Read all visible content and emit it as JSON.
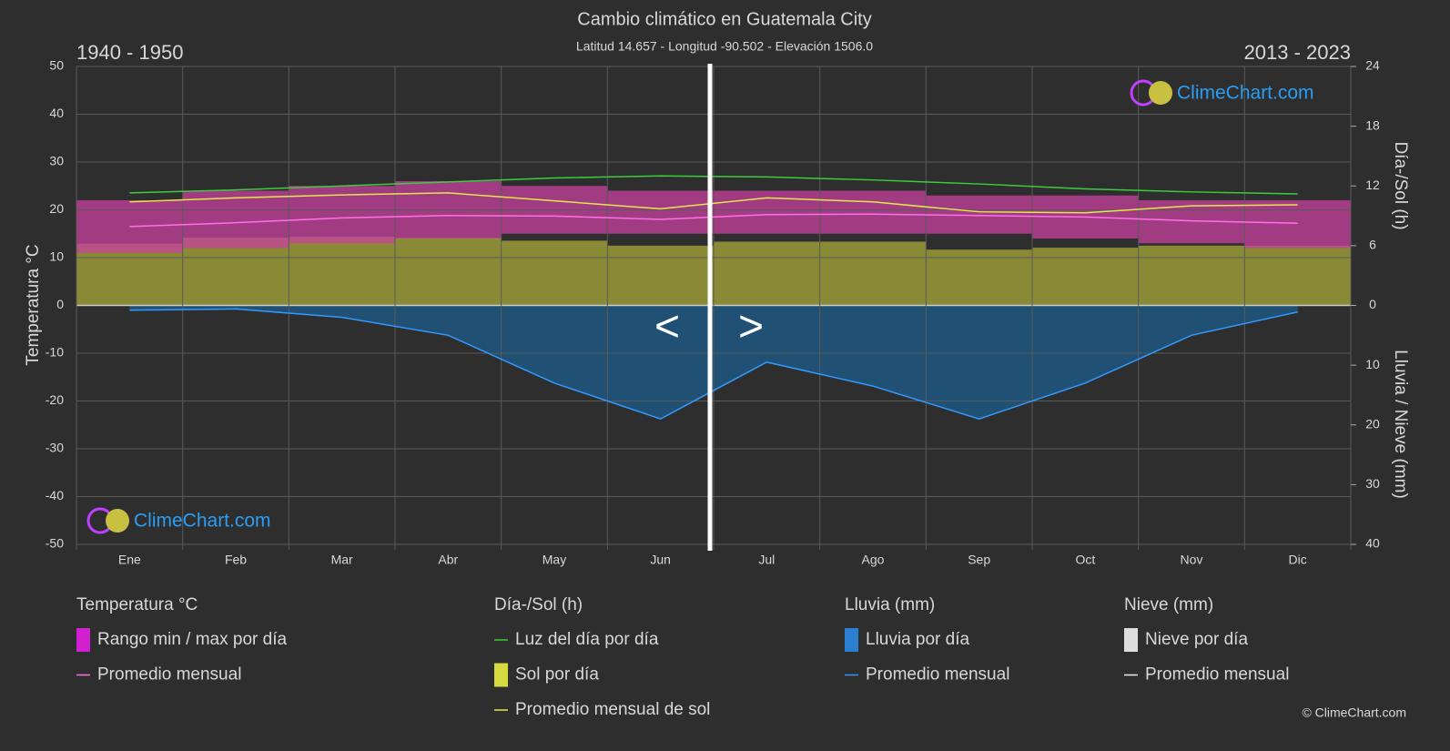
{
  "chart_data": {
    "type": "climate",
    "title": "Cambio climático en Guatemala City",
    "subtitle": "Latitud 14.657 - Longitud -90.502 - Elevación 1506.0",
    "period_left": "1940 - 1950",
    "period_right": "2013 - 2023",
    "y_label": "Temperatura °C",
    "y2_label": "Día-/Sol (h)",
    "y3_label": "Lluvia / Nieve (mm)",
    "watermark": "ClimeChart.com",
    "copyright": "© ClimeChart.com",
    "nav": {
      "prev": "<",
      "next": ">"
    },
    "categories": [
      "Ene",
      "Feb",
      "Mar",
      "Abr",
      "May",
      "Jun",
      "Jul",
      "Ago",
      "Sep",
      "Oct",
      "Nov",
      "Dic"
    ],
    "ylim": [
      -50,
      50
    ],
    "yticks": [
      -50,
      -40,
      -30,
      -20,
      -10,
      0,
      10,
      20,
      30,
      40,
      50
    ],
    "y2lim": [
      0,
      24
    ],
    "y2ticks": [
      0,
      6,
      12,
      18,
      24
    ],
    "y3lim": [
      0,
      40
    ],
    "y3ticks": [
      0,
      10,
      20,
      30,
      40
    ],
    "grid": true,
    "temp_range": {
      "color": "#c8409f",
      "min": [
        11,
        12,
        13,
        14,
        15,
        15,
        15,
        15,
        15,
        14,
        13,
        12
      ],
      "max": [
        22,
        24,
        25,
        26,
        25,
        24,
        24,
        24,
        23,
        23,
        22,
        22
      ]
    },
    "temp_avg": {
      "color": "#ff6ee6",
      "values": [
        16.5,
        17.3,
        18.3,
        18.8,
        18.7,
        18.0,
        19.0,
        19.1,
        18.8,
        18.5,
        17.7,
        17.2
      ]
    },
    "daylight": {
      "axis": "y2",
      "color": "#3ccc3c",
      "values": [
        11.3,
        11.6,
        12.0,
        12.4,
        12.8,
        13.0,
        12.9,
        12.6,
        12.2,
        11.7,
        11.4,
        11.2
      ]
    },
    "sun": {
      "axis": "y2",
      "color": "#8a8a36",
      "values": [
        6.2,
        6.8,
        6.9,
        6.8,
        6.5,
        6.0,
        6.4,
        6.4,
        5.6,
        5.8,
        6.0,
        6.0
      ]
    },
    "sun_avg": {
      "axis": "y2",
      "color": "#e6e64d",
      "values": [
        10.4,
        10.8,
        11.1,
        11.3,
        10.5,
        9.7,
        10.8,
        10.4,
        9.4,
        9.3,
        10.0,
        10.1
      ]
    },
    "rain_avg": {
      "axis": "y3",
      "color": "#3399ff",
      "fill": "#1d5a86",
      "values": [
        0.8,
        0.6,
        2,
        5,
        13,
        19,
        9.5,
        13.5,
        19,
        13,
        5,
        1.1
      ]
    },
    "legend_groups": [
      {
        "title": "Temperatura °C",
        "items": [
          "Rango min / max por día",
          "Promedio mensual"
        ]
      },
      {
        "title": "Día-/Sol (h)",
        "items": [
          "Luz del día por día",
          "Sol por día",
          "Promedio mensual de sol"
        ]
      },
      {
        "title": "Lluvia (mm)",
        "items": [
          "Lluvia por día",
          "Promedio mensual"
        ]
      },
      {
        "title": "Nieve (mm)",
        "items": [
          "Nieve por día",
          "Promedio mensual"
        ]
      }
    ]
  }
}
